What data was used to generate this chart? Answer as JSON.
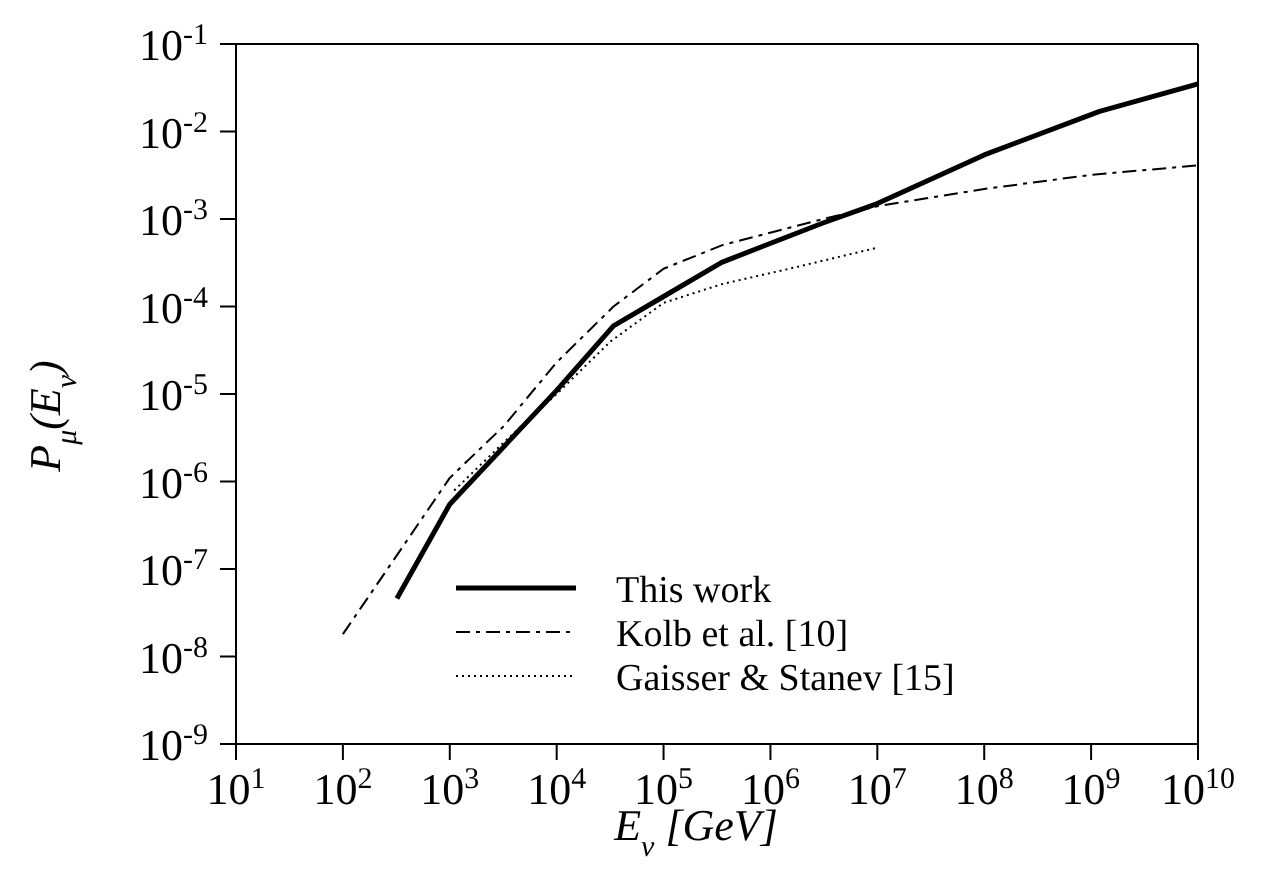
{
  "chart_data": {
    "type": "line",
    "xlabel": "E$_{ν}$ [GeV]",
    "ylabel": "P$_{μ}$(E$_{ν}$)",
    "log": "xy",
    "grid": false,
    "legend": "bottom right",
    "marker": "none",
    "xlim": [
      10,
      10000000000
    ],
    "ylim": [
      1e-09,
      0.1
    ],
    "xticks": [
      {
        "value": 10,
        "label": "10$^{1}$"
      },
      {
        "value": 100,
        "label": "10$^{2}$"
      },
      {
        "value": 1000,
        "label": "10$^{3}$"
      },
      {
        "value": 10000,
        "label": "10$^{4}$"
      },
      {
        "value": 100000,
        "label": "10$^{5}$"
      },
      {
        "value": 1000000,
        "label": "10$^{6}$"
      },
      {
        "value": 10000000,
        "label": "10$^{7}$"
      },
      {
        "value": 100000000,
        "label": "10$^{8}$"
      },
      {
        "value": 1000000000,
        "label": "10$^{9}$"
      },
      {
        "value": 10000000000,
        "label": "10$^{10}$"
      }
    ],
    "yticks": [
      {
        "value": 1e-09,
        "label": "10$^{-9}$"
      },
      {
        "value": 1e-08,
        "label": "10$^{-8}$"
      },
      {
        "value": 1e-07,
        "label": "10$^{-7}$"
      },
      {
        "value": 1e-06,
        "label": "10$^{-6}$"
      },
      {
        "value": 1e-05,
        "label": "10$^{-5}$"
      },
      {
        "value": 0.0001,
        "label": "10$^{-4}$"
      },
      {
        "value": 0.001,
        "label": "10$^{-3}$"
      },
      {
        "value": 0.01,
        "label": "10$^{-2}$"
      },
      {
        "value": 0.1,
        "label": "10$^{-1}$"
      }
    ],
    "series": [
      {
        "name": "This work",
        "color": "#000000",
        "line_style": "solid",
        "x": [
          320,
          1000,
          10000,
          34000,
          100000,
          350000,
          3100000,
          10000000,
          100000000,
          1200000000,
          10000000000
        ],
        "values": [
          4.6e-08,
          5.5e-07,
          1.1e-05,
          6e-05,
          0.00013,
          0.00032,
          0.0009,
          0.0015,
          0.0054,
          0.017,
          0.035
        ]
      },
      {
        "name": "Kolb et al. [10]",
        "color": "#000000",
        "line_style": "dashed",
        "x": [
          100,
          1000,
          3200,
          10000,
          34000,
          100000,
          350000,
          3100000,
          10000000,
          100000000,
          1000000000,
          10000000000
        ],
        "values": [
          1.8e-08,
          1.1e-06,
          4.3e-06,
          2.3e-05,
          0.0001,
          0.00027,
          0.0005,
          0.001,
          0.0014,
          0.0022,
          0.0032,
          0.0041
        ]
      },
      {
        "name": "Gaisser & Stanev [15]",
        "color": "#000000",
        "line_style": "dotted",
        "x": [
          1100,
          3200,
          10000,
          32000,
          100000,
          350000,
          1500000,
          10000000
        ],
        "values": [
          7.9e-07,
          2.8e-06,
          1e-05,
          4e-05,
          0.00011,
          0.00018,
          0.00027,
          0.00047
        ]
      }
    ]
  }
}
